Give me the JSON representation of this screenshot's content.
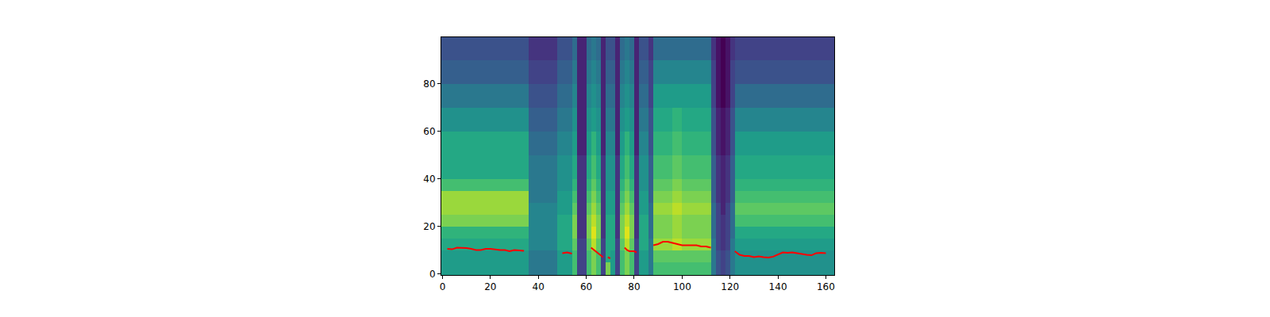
{
  "chart_data": {
    "type": "heatmap",
    "xlim": [
      -0.5,
      163.5
    ],
    "ylim": [
      -0.5,
      99.5
    ],
    "xticks": [
      0,
      20,
      40,
      60,
      80,
      100,
      120,
      140,
      160
    ],
    "yticks": [
      0,
      20,
      40,
      60,
      80
    ],
    "zlim": [
      0,
      10
    ],
    "x_edges": [
      -0.5,
      4,
      8,
      12,
      16,
      20,
      24,
      28,
      32,
      36,
      40,
      44,
      48,
      50,
      52,
      54,
      56,
      58,
      60,
      62,
      64,
      66,
      68,
      70,
      72,
      74,
      76,
      78,
      80,
      82,
      84,
      86,
      88,
      92,
      96,
      100,
      104,
      108,
      112,
      114,
      116,
      118,
      120,
      122,
      126,
      130,
      134,
      138,
      142,
      146,
      150,
      154,
      158,
      163.5
    ],
    "y_edges": [
      -0.5,
      5,
      10,
      15,
      20,
      25,
      30,
      35,
      40,
      50,
      60,
      70,
      80,
      90,
      99.5
    ],
    "cells": [
      [
        5.5,
        5.5,
        6,
        6.5,
        8,
        8.5,
        8.5,
        7,
        6,
        6,
        5,
        4,
        3,
        2.5
      ],
      [
        5.5,
        5.5,
        6,
        6.5,
        8,
        8.5,
        8.5,
        7,
        6,
        6,
        5,
        4,
        3,
        2.5
      ],
      [
        5.5,
        5.5,
        6,
        6.5,
        8,
        8.5,
        8.5,
        7,
        6,
        6,
        5,
        4,
        3,
        2.5
      ],
      [
        5.5,
        5.5,
        6,
        6.5,
        8,
        8.5,
        8.5,
        7,
        6,
        6,
        5,
        4,
        3,
        2.5
      ],
      [
        5.5,
        5.5,
        6,
        6.5,
        8,
        8.5,
        8.5,
        7,
        6,
        6,
        5,
        4,
        3,
        2.5
      ],
      [
        5.5,
        5.5,
        6,
        6.5,
        8,
        8.5,
        8.5,
        7,
        6,
        6,
        5,
        4,
        3,
        2.5
      ],
      [
        5.5,
        5.5,
        6,
        6.5,
        8,
        8.5,
        8.5,
        7,
        6,
        6,
        5,
        4,
        3,
        2.5
      ],
      [
        5.5,
        5.5,
        6,
        6.5,
        8,
        8.5,
        8.5,
        7,
        6,
        6,
        5,
        4,
        3,
        2.5
      ],
      [
        5.5,
        5.5,
        6,
        6.5,
        8,
        8.5,
        8.5,
        7,
        6,
        6,
        5,
        4,
        3,
        2.5
      ],
      [
        4,
        4,
        4.5,
        4.5,
        4.5,
        4.5,
        4,
        4,
        4,
        3.5,
        3,
        2.5,
        2,
        1.5
      ],
      [
        4,
        4,
        4.5,
        4.5,
        4.5,
        4.5,
        4,
        4,
        4,
        3.5,
        3,
        2.5,
        2,
        1.5
      ],
      [
        4,
        4,
        4.5,
        4.5,
        4.5,
        4.5,
        4,
        4,
        4,
        3.5,
        3,
        2.5,
        2,
        1.5
      ],
      [
        5.5,
        5.5,
        6,
        6,
        6,
        5.5,
        5.5,
        5,
        5,
        4.5,
        4,
        3.5,
        3,
        2.5
      ],
      [
        5.5,
        5.5,
        6,
        6,
        6,
        5.5,
        5.5,
        5,
        5,
        4.5,
        4,
        3.5,
        3,
        2.5
      ],
      [
        5.5,
        5.5,
        6,
        6,
        6,
        5.5,
        5.5,
        5,
        5,
        4.5,
        4,
        3.5,
        3,
        2.5
      ],
      [
        7,
        7,
        7.5,
        8,
        8,
        7.5,
        7,
        6.5,
        6,
        5.5,
        5,
        4.5,
        4,
        3.5
      ],
      [
        2,
        2,
        2,
        1.5,
        1.5,
        1.5,
        1.5,
        1.5,
        1.5,
        1,
        1,
        1,
        1,
        1
      ],
      [
        2,
        2,
        2,
        1.5,
        1.5,
        1.5,
        1.5,
        1.5,
        1.5,
        1,
        1,
        1,
        1,
        1
      ],
      [
        7,
        7,
        7.5,
        8,
        8,
        7.5,
        7,
        6.5,
        6,
        5.5,
        5,
        4.5,
        4,
        3.5
      ],
      [
        8,
        8,
        9,
        9.5,
        9,
        8.5,
        8,
        7.5,
        7,
        6.5,
        5.5,
        5,
        4.5,
        4
      ],
      [
        7,
        7,
        7.5,
        8,
        8,
        7.5,
        7,
        6.5,
        6,
        5.5,
        5,
        4.5,
        4,
        3.5
      ],
      [
        2,
        2,
        2,
        1.5,
        1.5,
        1.5,
        1.5,
        1.5,
        1.5,
        1,
        1,
        1,
        1,
        1
      ],
      [
        8,
        6,
        6,
        6,
        6,
        5.5,
        5.5,
        5,
        5,
        4.5,
        4,
        3.5,
        3,
        2.5
      ],
      [
        5.5,
        5.5,
        6,
        6,
        6,
        5.5,
        5.5,
        5,
        5,
        4.5,
        4,
        3.5,
        3,
        2.5
      ],
      [
        2,
        2,
        2,
        1.5,
        1.5,
        1.5,
        1.5,
        1.5,
        1.5,
        1,
        1,
        1,
        1,
        1
      ],
      [
        7,
        7,
        7.5,
        8,
        8,
        7.5,
        7,
        6.5,
        6,
        5.5,
        5,
        4.5,
        4,
        3.5
      ],
      [
        8,
        8,
        9,
        9.5,
        9,
        8.5,
        8,
        7.5,
        7,
        6.5,
        5.5,
        5,
        4.5,
        4
      ],
      [
        7,
        7,
        7.5,
        8,
        8,
        7.5,
        7,
        6.5,
        6,
        5.5,
        5,
        4.5,
        4,
        3.5
      ],
      [
        2,
        2,
        2,
        1.5,
        1.5,
        1.5,
        1.5,
        1.5,
        1.5,
        1,
        1,
        1,
        1,
        1
      ],
      [
        5.5,
        5.5,
        6,
        6,
        6,
        5.5,
        5.5,
        5,
        5,
        4.5,
        4,
        3.5,
        3,
        2.5
      ],
      [
        5.5,
        5.5,
        6,
        6,
        6,
        5.5,
        5.5,
        5,
        5,
        4.5,
        4,
        3.5,
        3,
        2.5
      ],
      [
        4,
        4,
        4,
        3.5,
        3.5,
        3.5,
        3,
        3,
        3,
        2.5,
        2.5,
        2,
        2,
        1.5
      ],
      [
        7,
        7.5,
        8.5,
        8,
        8,
        8.5,
        8,
        7.5,
        7,
        6.5,
        6,
        5.5,
        4.5,
        3.5
      ],
      [
        7,
        7.5,
        8.5,
        8,
        8,
        8.5,
        8,
        7.5,
        7,
        6.5,
        6,
        5.5,
        4.5,
        3.5
      ],
      [
        7,
        7.5,
        9,
        8.5,
        8.5,
        9,
        8.5,
        8,
        7.5,
        7,
        6.5,
        5.5,
        4.5,
        3.5
      ],
      [
        7,
        7.5,
        8.5,
        8,
        8,
        8.5,
        8,
        7.5,
        7,
        6.5,
        6,
        5.5,
        4.5,
        3.5
      ],
      [
        7,
        7.5,
        8.5,
        8,
        8,
        8.5,
        8,
        7.5,
        7,
        6.5,
        6,
        5.5,
        4.5,
        3.5
      ],
      [
        7,
        7.5,
        8.5,
        8,
        8,
        8.5,
        8,
        7.5,
        7,
        6.5,
        6,
        5.5,
        4.5,
        3.5
      ],
      [
        4,
        4,
        4,
        3.5,
        3.5,
        3.5,
        3,
        3,
        3,
        2.5,
        2.5,
        2,
        2,
        1.5
      ],
      [
        2.5,
        2.5,
        2,
        2,
        2,
        2,
        1.5,
        1.5,
        1.5,
        1,
        1,
        0.5,
        0.5,
        0.5
      ],
      [
        2,
        2,
        1.5,
        1.5,
        1.5,
        1,
        1,
        1,
        1,
        0.5,
        0.5,
        0,
        0,
        0
      ],
      [
        2.5,
        2.5,
        2,
        2,
        2,
        2,
        1.5,
        1.5,
        1.5,
        1,
        1,
        0.5,
        0.5,
        0.5
      ],
      [
        4,
        4,
        4,
        3.5,
        3.5,
        3.5,
        3,
        3,
        3,
        2.5,
        2.5,
        2,
        2,
        1.5
      ],
      [
        5,
        5,
        5.5,
        6,
        7,
        7.5,
        7,
        6.5,
        6,
        5.5,
        4.5,
        3.5,
        2.5,
        2
      ],
      [
        5,
        5,
        5.5,
        6,
        7,
        7.5,
        7,
        6.5,
        6,
        5.5,
        4.5,
        3.5,
        2.5,
        2
      ],
      [
        5,
        5,
        5.5,
        6,
        7,
        7.5,
        7,
        6.5,
        6,
        5.5,
        4.5,
        3.5,
        2.5,
        2
      ],
      [
        5,
        5,
        5.5,
        6,
        7,
        7.5,
        7,
        6.5,
        6,
        5.5,
        4.5,
        3.5,
        2.5,
        2
      ],
      [
        5,
        5,
        5.5,
        6,
        7,
        7.5,
        7,
        6.5,
        6,
        5.5,
        4.5,
        3.5,
        2.5,
        2
      ],
      [
        5,
        5,
        5.5,
        6,
        7,
        7.5,
        7,
        6.5,
        6,
        5.5,
        4.5,
        3.5,
        2.5,
        2
      ],
      [
        5,
        5,
        5.5,
        6,
        7,
        7.5,
        7,
        6.5,
        6,
        5.5,
        4.5,
        3.5,
        2.5,
        2
      ],
      [
        5,
        5,
        5.5,
        6,
        7,
        7.5,
        7,
        6.5,
        6,
        5.5,
        4.5,
        3.5,
        2.5,
        2
      ],
      [
        5,
        5,
        5.5,
        6,
        7,
        7.5,
        7,
        6.5,
        6,
        5.5,
        4.5,
        3.5,
        2.5,
        2
      ],
      [
        5,
        5,
        5.5,
        6,
        7,
        7.5,
        7,
        6.5,
        6,
        5.5,
        4.5,
        3.5,
        2.5,
        2
      ]
    ],
    "series": [
      {
        "type": "line",
        "color": "#ff0000",
        "x": [
          2,
          4,
          6,
          8,
          10,
          12,
          14,
          16,
          18,
          20,
          22,
          24,
          26,
          28,
          30,
          32,
          34,
          36,
          50,
          52,
          54,
          56,
          62,
          64,
          66,
          67,
          68,
          69,
          70,
          72,
          76,
          77,
          78,
          80,
          81,
          84,
          88,
          90,
          92,
          94,
          96,
          98,
          100,
          102,
          104,
          106,
          108,
          110,
          112,
          116,
          122,
          124,
          126,
          128,
          130,
          132,
          134,
          136,
          138,
          140,
          142,
          144,
          146,
          148,
          150,
          152,
          154,
          156,
          158,
          160
        ],
        "values": [
          10.5,
          10.3,
          11,
          11,
          10.8,
          10.5,
          10,
          10,
          10.5,
          10.5,
          10.2,
          10,
          10,
          9.5,
          10,
          9.8,
          9.7,
          null,
          8.7,
          9,
          8.5,
          null,
          11,
          9.5,
          8,
          7,
          null,
          7,
          6.5,
          null,
          11,
          10,
          9.5,
          9.5,
          9,
          null,
          12,
          12.5,
          13.5,
          13.5,
          13,
          12.5,
          12,
          12,
          12,
          12,
          11.5,
          11.5,
          11,
          null,
          9.5,
          8,
          7.5,
          7.5,
          7,
          7.3,
          7,
          6.8,
          7.2,
          8,
          9,
          8.8,
          9,
          8.7,
          8.3,
          8,
          7.8,
          8.7,
          8.8,
          8.7
        ]
      }
    ]
  }
}
